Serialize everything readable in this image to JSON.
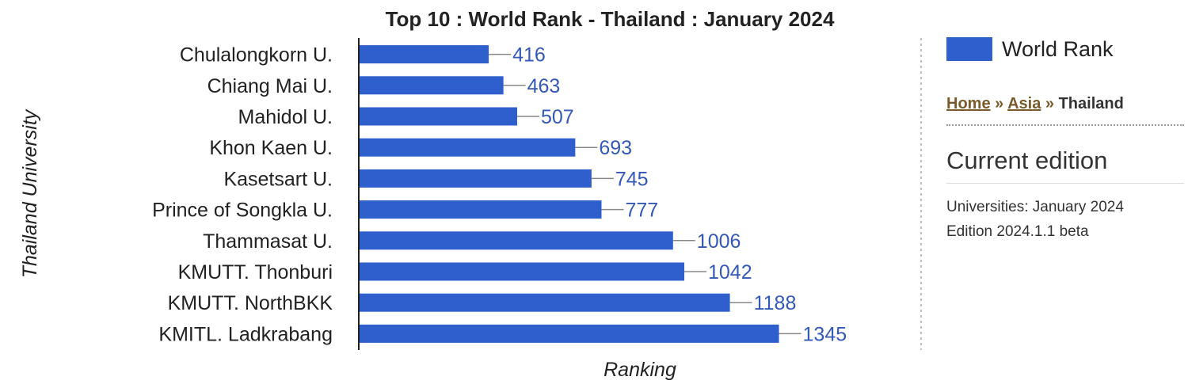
{
  "chart_data": {
    "type": "bar",
    "orientation": "horizontal",
    "title": "Top 10 : World Rank - Thailand : January 2024",
    "xlabel": "Ranking",
    "ylabel": "Thailand University",
    "categories": [
      "Chulalongkorn U.",
      "Chiang Mai U.",
      "Mahidol U.",
      "Khon Kaen U.",
      "Kasetsart U.",
      "Prince of Songkla U.",
      "Thammasat U.",
      "KMUTT. Thonburi",
      "KMUTT. NorthBKK",
      "KMITL. Ladkrabang"
    ],
    "series": [
      {
        "name": "World Rank",
        "values": [
          416,
          463,
          507,
          693,
          745,
          777,
          1006,
          1042,
          1188,
          1345
        ]
      }
    ],
    "xlim": [
      0,
      1800
    ],
    "grid": false,
    "legend_position": "right",
    "colors": {
      "bar": "#2f5fcc",
      "value_label": "#3358b8",
      "leader_line": "#888888",
      "axis": "#222222"
    }
  },
  "sidebar": {
    "breadcrumb": {
      "home": "Home",
      "separator": "»",
      "asia": "Asia",
      "current": "Thailand"
    },
    "current_edition_title": "Current edition",
    "edition_lines": [
      "Universities: January 2024",
      "Edition 2024.1.1 beta"
    ]
  }
}
